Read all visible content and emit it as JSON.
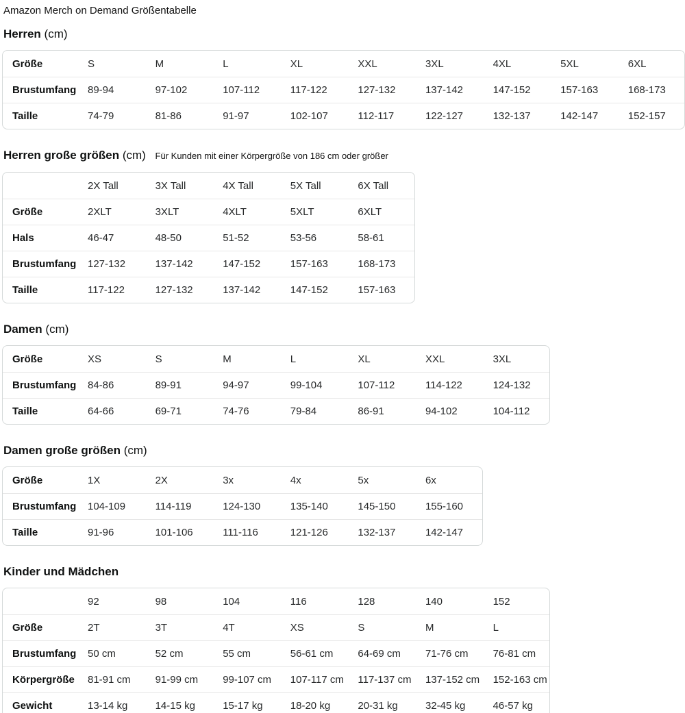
{
  "page_title": "Amazon Merch on Demand Größentabelle",
  "colors": {
    "background": "#FFFFFF",
    "text_primary": "#0F1111",
    "text_values": "#27292A",
    "table_border": "#D5D9D9",
    "row_divider": "#E7E7E7"
  },
  "sections": [
    {
      "heading": "Herren",
      "unit": "(cm)",
      "note": "",
      "table": {
        "rows": [
          {
            "label": "Größe",
            "cells": [
              "S",
              "M",
              "L",
              "XL",
              "XXL",
              "3XL",
              "4XL",
              "5XL",
              "6XL"
            ]
          },
          {
            "label": "Brustumfang",
            "cells": [
              "89-94",
              "97-102",
              "107-112",
              "117-122",
              "127-132",
              "137-142",
              "147-152",
              "157-163",
              "168-173"
            ]
          },
          {
            "label": "Taille",
            "cells": [
              "74-79",
              "81-86",
              "91-97",
              "102-107",
              "112-117",
              "122-127",
              "132-137",
              "142-147",
              "152-157"
            ]
          }
        ]
      }
    },
    {
      "heading": "Herren große größen",
      "unit": "(cm)",
      "note": "Für Kunden mit einer Körpergröße von 186 cm oder größer",
      "table": {
        "rows": [
          {
            "label": "",
            "cells": [
              "2X Tall",
              "3X Tall",
              "4X Tall",
              "5X Tall",
              "6X Tall"
            ]
          },
          {
            "label": "Größe",
            "cells": [
              "2XLT",
              "3XLT",
              "4XLT",
              "5XLT",
              "6XLT"
            ]
          },
          {
            "label": "Hals",
            "cells": [
              "46-47",
              "48-50",
              "51-52",
              "53-56",
              "58-61"
            ]
          },
          {
            "label": "Brustumfang",
            "cells": [
              "127-132",
              "137-142",
              "147-152",
              "157-163",
              "168-173"
            ]
          },
          {
            "label": "Taille",
            "cells": [
              "117-122",
              "127-132",
              "137-142",
              "147-152",
              "157-163"
            ]
          }
        ]
      }
    },
    {
      "heading": "Damen",
      "unit": "(cm)",
      "note": "",
      "table": {
        "rows": [
          {
            "label": "Größe",
            "cells": [
              "XS",
              "S",
              "M",
              "L",
              "XL",
              "XXL",
              "3XL"
            ]
          },
          {
            "label": "Brustumfang",
            "cells": [
              "84-86",
              "89-91",
              "94-97",
              "99-104",
              "107-112",
              "114-122",
              "124-132"
            ]
          },
          {
            "label": "Taille",
            "cells": [
              "64-66",
              "69-71",
              "74-76",
              "79-84",
              "86-91",
              "94-102",
              "104-112"
            ]
          }
        ]
      }
    },
    {
      "heading": "Damen große größen",
      "unit": "(cm)",
      "note": "",
      "table": {
        "rows": [
          {
            "label": "Größe",
            "cells": [
              "1X",
              "2X",
              "3x",
              "4x",
              "5x",
              "6x"
            ]
          },
          {
            "label": "Brustumfang",
            "cells": [
              "104-109",
              "114-119",
              "124-130",
              "135-140",
              "145-150",
              "155-160"
            ]
          },
          {
            "label": "Taille",
            "cells": [
              "91-96",
              "101-106",
              "111-116",
              "121-126",
              "132-137",
              "142-147"
            ]
          }
        ]
      }
    },
    {
      "heading": "Kinder und Mädchen",
      "unit": "",
      "note": "",
      "table": {
        "rows": [
          {
            "label": "",
            "cells": [
              "92",
              "98",
              "104",
              "116",
              "128",
              "140",
              "152"
            ]
          },
          {
            "label": "Größe",
            "cells": [
              "2T",
              "3T",
              "4T",
              "XS",
              "S",
              "M",
              "L"
            ]
          },
          {
            "label": "Brustumfang",
            "cells": [
              "50 cm",
              "52 cm",
              "55 cm",
              "56-61 cm",
              "64-69 cm",
              "71-76 cm",
              "76-81 cm"
            ]
          },
          {
            "label": "Körpergröße",
            "cells": [
              "81-91 cm",
              "91-99 cm",
              "99-107 cm",
              "107-117 cm",
              "117-137 cm",
              "137-152 cm",
              "152-163 cm"
            ]
          },
          {
            "label": "Gewicht",
            "cells": [
              "13-14 kg",
              "14-15 kg",
              "15-17 kg",
              "18-20 kg",
              "20-31 kg",
              "32-45 kg",
              "46-57 kg"
            ]
          }
        ]
      }
    }
  ]
}
